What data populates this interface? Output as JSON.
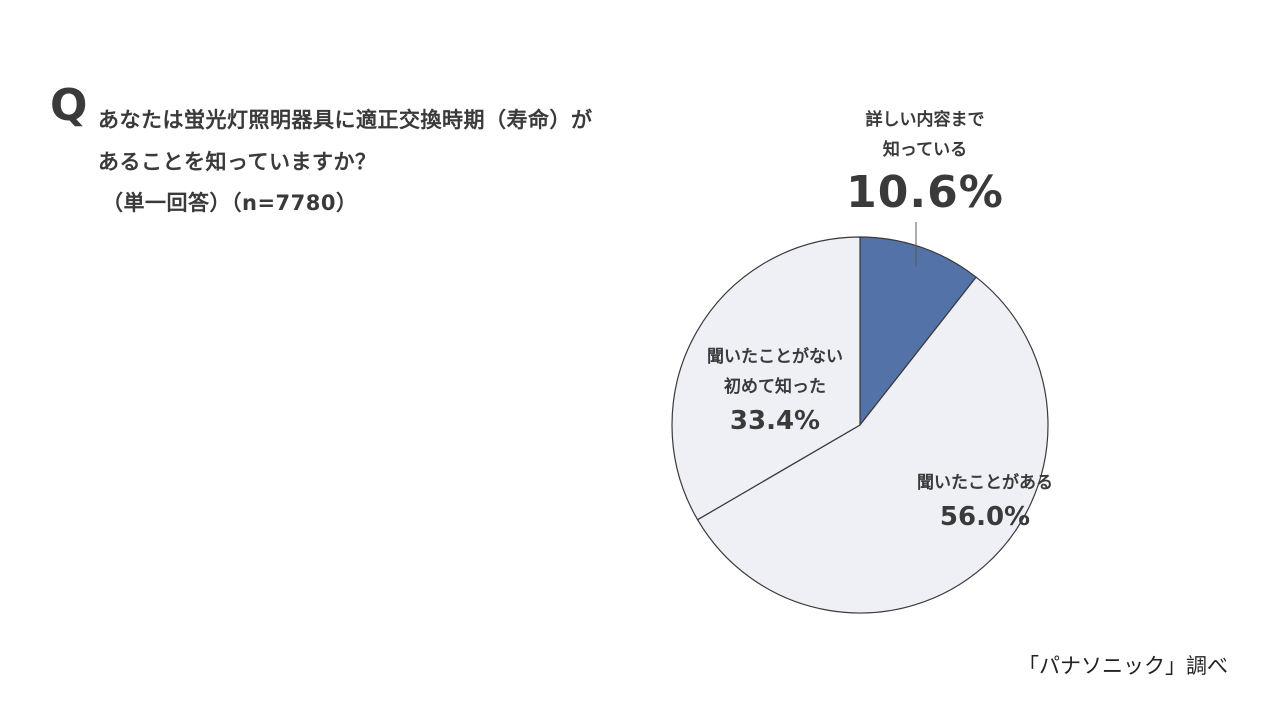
{
  "question": {
    "mark": "Q",
    "line1": "あなたは蛍光灯照明器具に適正交換時期（寿命）が",
    "line2": "あることを知っていますか？",
    "meta": "（単一回答）（n=7780）"
  },
  "chart_data": {
    "type": "pie",
    "slices": [
      {
        "label_line1": "詳しい内容まで",
        "label_line2": "知っている",
        "value": 10.6,
        "display": "10.6%",
        "color": "#5272a8"
      },
      {
        "label_line1": "聞いたことがある",
        "label_line2": "",
        "value": 56.0,
        "display": "56.0%",
        "color": "#eef0f6"
      },
      {
        "label_line1": "聞いたことがない",
        "label_line2": "初めて知った",
        "value": 33.4,
        "display": "33.4%",
        "color": "#eef0f6"
      }
    ],
    "start": "12 o'clock",
    "direction": "clockwise",
    "outline_color": "#3a3a3a"
  },
  "source": "「パナソニック」調べ"
}
